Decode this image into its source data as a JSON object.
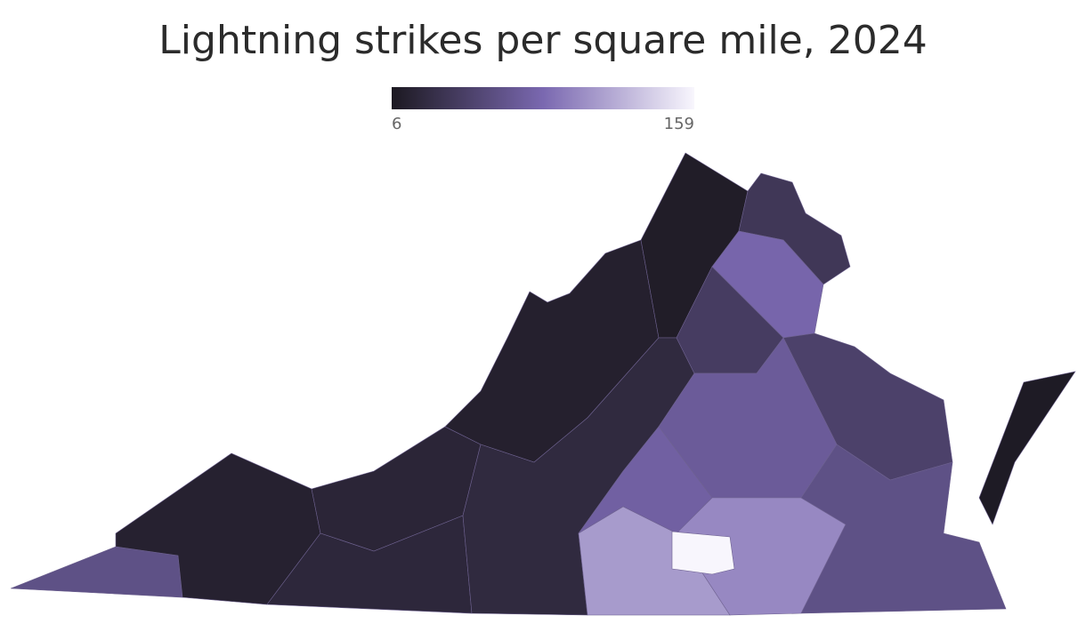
{
  "title": "Lightning strikes per square mile, 2024",
  "legend": {
    "min": 6,
    "max": 159,
    "colors": [
      "#1c1921",
      "#7a68b0",
      "#f8f6fd"
    ]
  },
  "county_values": [
    60,
    14,
    18,
    20,
    13,
    10,
    22,
    35,
    80,
    40,
    45,
    70,
    75,
    110,
    100,
    60,
    8,
    159
  ]
}
